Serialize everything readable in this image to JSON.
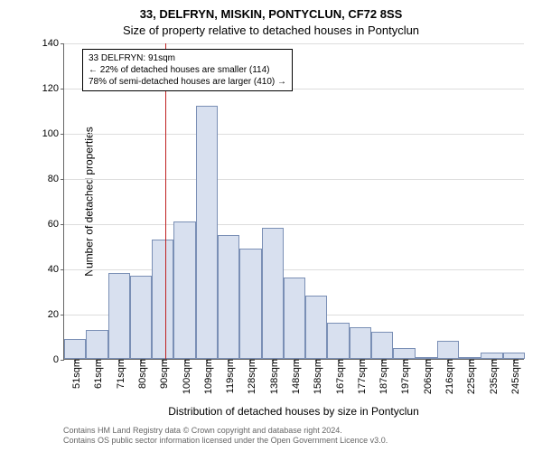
{
  "chart": {
    "type": "histogram",
    "title_main": "33, DELFRYN, MISKIN, PONTYCLUN, CF72 8SS",
    "title_sub": "Size of property relative to detached houses in Pontyclun",
    "y_label": "Number of detached properties",
    "x_label": "Distribution of detached houses by size in Pontyclun",
    "ylim": [
      0,
      140
    ],
    "ytick_step": 20,
    "yticks": [
      0,
      20,
      40,
      60,
      80,
      100,
      120,
      140
    ],
    "bar_color": "#d8e0ef",
    "bar_border_color": "#7a8fb5",
    "grid_color": "#dddddd",
    "background_color": "#ffffff",
    "ref_line_color": "#c02020",
    "ref_line_value": 91,
    "title_fontsize": 13,
    "label_fontsize": 12,
    "tick_fontsize": 11,
    "categories": [
      "51sqm",
      "61sqm",
      "71sqm",
      "80sqm",
      "90sqm",
      "100sqm",
      "109sqm",
      "119sqm",
      "128sqm",
      "138sqm",
      "148sqm",
      "158sqm",
      "167sqm",
      "177sqm",
      "187sqm",
      "197sqm",
      "206sqm",
      "216sqm",
      "225sqm",
      "235sqm",
      "245sqm"
    ],
    "values": [
      9,
      13,
      38,
      37,
      53,
      61,
      112,
      55,
      49,
      58,
      36,
      28,
      16,
      14,
      12,
      5,
      1,
      8,
      1,
      3,
      3
    ],
    "info_box": {
      "line1": "33 DELFRYN: 91sqm",
      "line2": "← 22% of detached houses are smaller (114)",
      "line3": "78% of semi-detached houses are larger (410) →"
    },
    "footer_line1": "Contains HM Land Registry data © Crown copyright and database right 2024.",
    "footer_line2": "Contains OS public sector information licensed under the Open Government Licence v3.0."
  }
}
